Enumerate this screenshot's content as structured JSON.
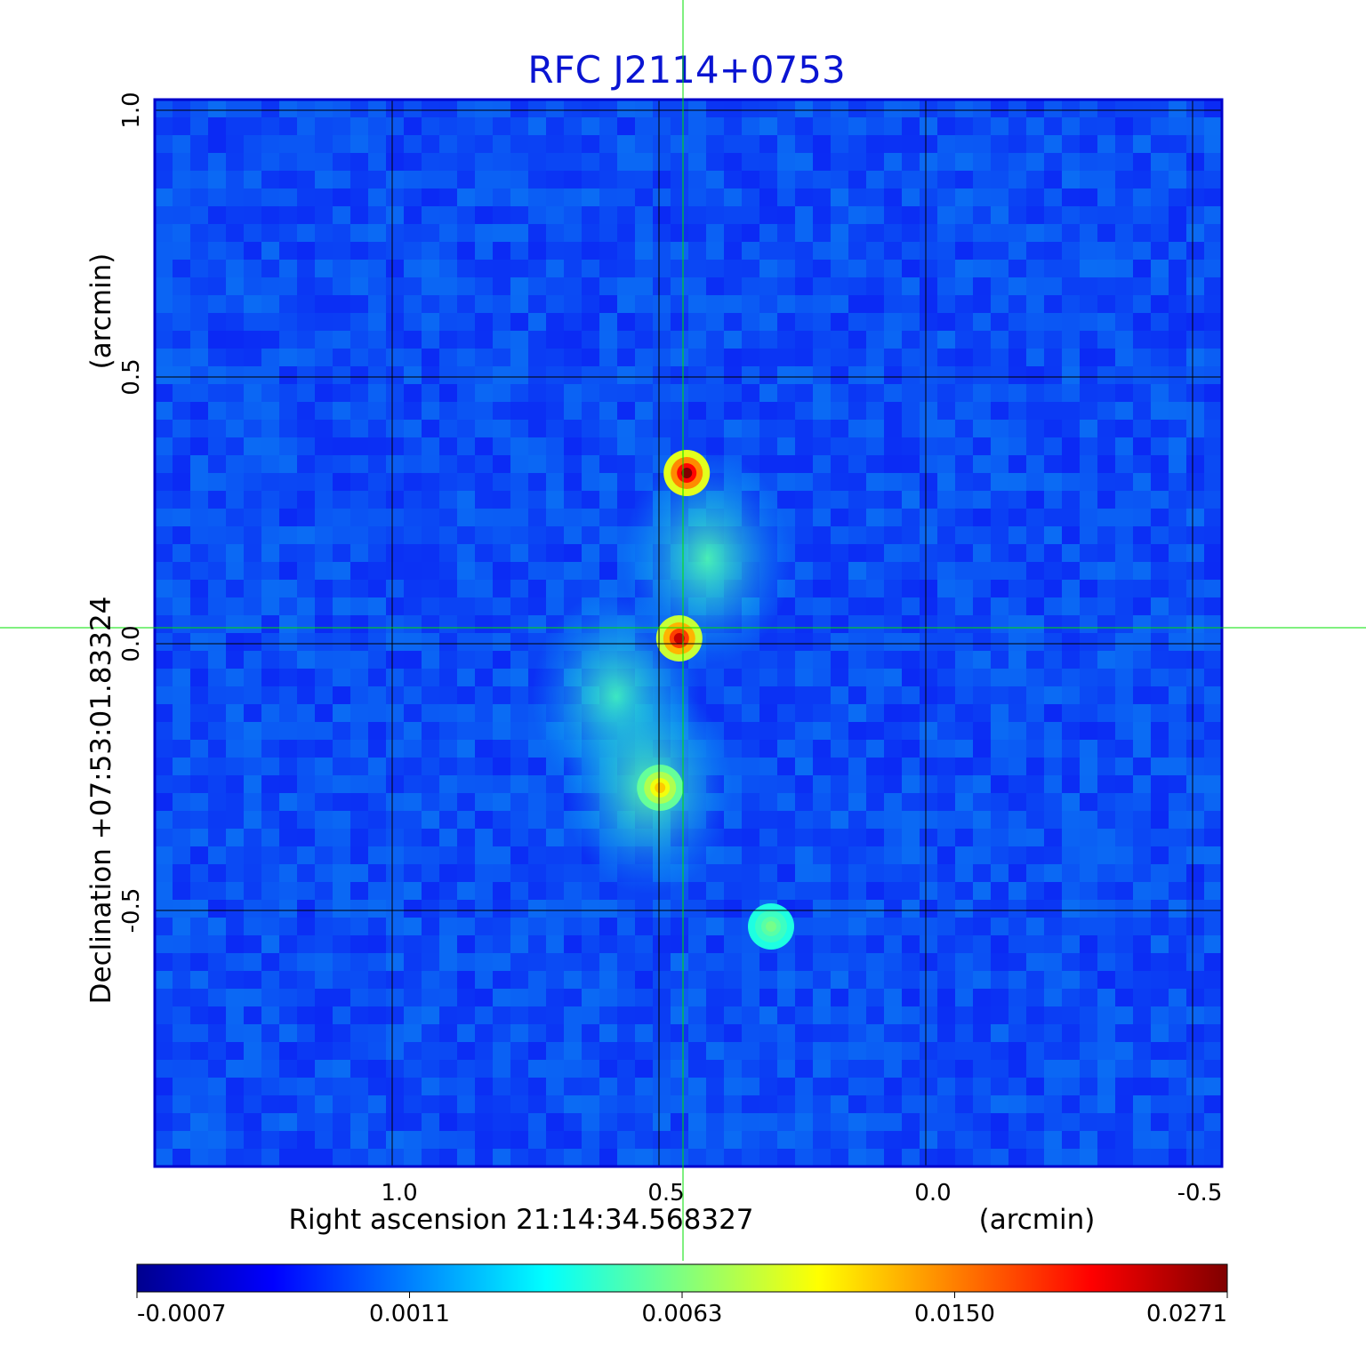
{
  "chart_data": {
    "type": "heatmap",
    "title": "RFC J2114+0753",
    "xlabel": "Right ascension  21:14:34.568327",
    "xunit": "(arcmin)",
    "ylabel": "Declination  +07:53:01.83324",
    "yunit": "(arcmin)",
    "x_ticks": [
      1.0,
      0.5,
      0.0,
      -0.5
    ],
    "x_tick_labels": [
      "1.0",
      "0.5",
      "0.0",
      "-0.5"
    ],
    "y_ticks": [
      1.0,
      0.5,
      0.0,
      -0.5
    ],
    "y_tick_labels": [
      "1.0",
      "0.5",
      "0.0",
      "-0.5"
    ],
    "xlim": [
      1.445,
      -0.555
    ],
    "ylim": [
      -0.98,
      1.02
    ],
    "x_reversed": true,
    "grid": true,
    "colormap": "jet",
    "colorbar_tick_labels": [
      "-0.0007",
      "0.0011",
      "0.0063",
      "0.0150",
      "0.0271"
    ],
    "crosshair": {
      "x": 0.455,
      "y": 0.03
    },
    "sources": [
      {
        "x": 0.448,
        "y": 0.32,
        "peak": 0.0271
      },
      {
        "x": 0.462,
        "y": 0.01,
        "peak": 0.023
      },
      {
        "x": 0.498,
        "y": -0.27,
        "peak": 0.011
      },
      {
        "x": 0.29,
        "y": -0.53,
        "peak": 0.005
      }
    ],
    "diffuse_emission": [
      {
        "x": 0.41,
        "y": 0.16,
        "level": 0.003
      },
      {
        "x": 0.58,
        "y": -0.1,
        "level": 0.0028
      },
      {
        "x": 0.52,
        "y": -0.27,
        "level": 0.0032
      }
    ],
    "colors": {
      "title": "#0a14d2",
      "axis_frame": "#0000cc",
      "crosshair": "#00e000",
      "grid": "#000000"
    }
  }
}
